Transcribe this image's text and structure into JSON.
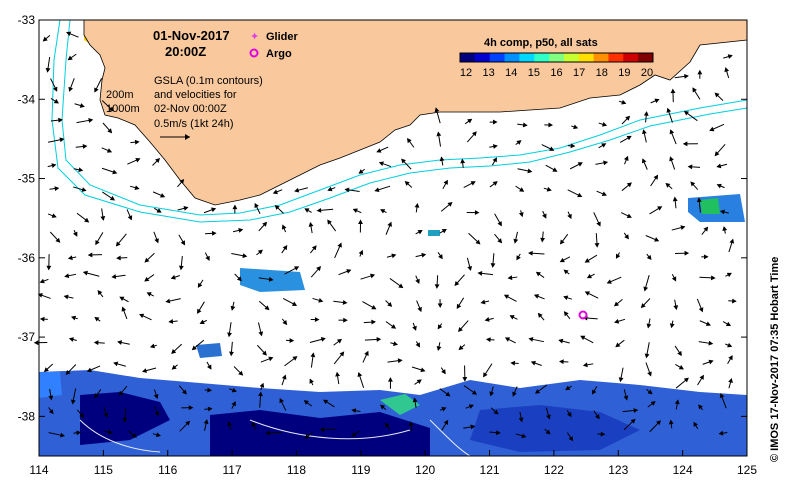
{
  "header": {
    "date": "01-Nov-2017",
    "time": "20:00Z"
  },
  "legend_markers": {
    "glider": "Glider",
    "argo": "Argo",
    "glider_color": "#e040e0",
    "argo_color": "#e000e0"
  },
  "info_text": {
    "line1": "GSLA (0.1m contours)",
    "line2": "and velocities for",
    "line3": "02-Nov 00:00Z",
    "line4": "0.5m/s (1kt 24h)",
    "depth_200": "200m",
    "depth_1000": "1000m"
  },
  "colorbar": {
    "title": "4h comp, p50, all sats",
    "ticks": [
      "12",
      "13",
      "14",
      "15",
      "16",
      "17",
      "18",
      "19",
      "20"
    ],
    "colors": [
      "#00007f",
      "#0000d0",
      "#0040ff",
      "#0090ff",
      "#00d8ff",
      "#30ffc8",
      "#80ff80",
      "#c8ff30",
      "#ffe000",
      "#ff9000",
      "#ff3000",
      "#d00000",
      "#800000"
    ]
  },
  "axes": {
    "lon_ticks": [
      "114",
      "115",
      "116",
      "117",
      "118",
      "119",
      "120",
      "121",
      "122",
      "123",
      "124",
      "125"
    ],
    "lat_ticks": [
      "-33",
      "-34",
      "-35",
      "-36",
      "-37",
      "-38"
    ]
  },
  "credit": "© IMOS 17-Nov-2017 07:35 Hobart Time",
  "colors": {
    "land": "#f9c99d",
    "isobath": "#00d0e0",
    "argo_float": "#e000e0"
  },
  "argo_float": {
    "lon": 122.5,
    "lat": -36.7
  }
}
